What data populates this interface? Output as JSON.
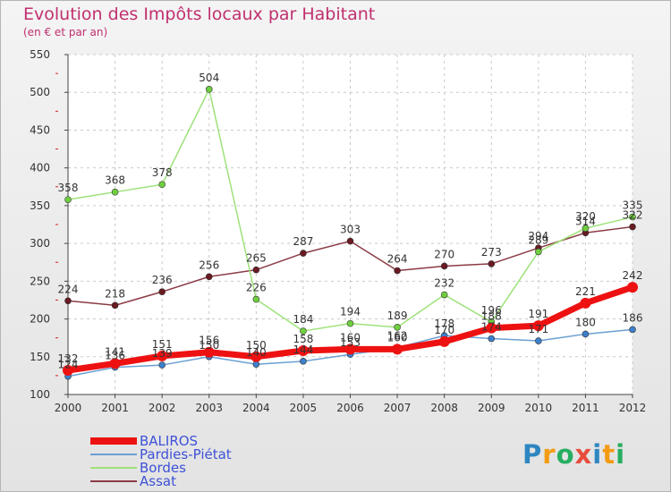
{
  "title": "Evolution des Impôts locaux par Habitant",
  "subtitle": "(en € et par an)",
  "logo": {
    "letters": [
      "P",
      "r",
      "o",
      "x",
      "i",
      "t",
      "i"
    ],
    "colors": [
      "#2e86c1",
      "#f39c12",
      "#27ae60",
      "#e74c3c",
      "#2e86c1",
      "#f39c12",
      "#27ae60"
    ]
  },
  "chart_data": {
    "type": "line",
    "title": "Evolution des Impôts locaux par Habitant",
    "subtitle": "(en € et par an)",
    "categories": [
      "2000",
      "2001",
      "2002",
      "2003",
      "2004",
      "2005",
      "2006",
      "2007",
      "2008",
      "2009",
      "2010",
      "2011",
      "2012"
    ],
    "ylim": [
      100,
      550
    ],
    "yticks": [
      "100",
      "150",
      "200",
      "250",
      "300",
      "350",
      "400",
      "450",
      "500",
      "550"
    ],
    "legend_position": "bottom-left",
    "series": [
      {
        "name": "BALIROS",
        "color": "#ee1111",
        "marker": "#ee1111",
        "values": [
          132,
          141,
          151,
          156,
          150,
          158,
          160,
          160,
          170,
          188,
          191,
          221,
          242
        ],
        "labels": [
          "132",
          "141",
          "151",
          "156",
          "150",
          "158",
          "160",
          "160",
          "170",
          "188",
          "191",
          "221",
          "242"
        ]
      },
      {
        "name": "Pardies-Piétat",
        "color": "#6b9fd3",
        "marker": "#3d7fc9",
        "values": [
          124,
          136,
          139,
          150,
          140,
          144,
          153,
          162,
          178,
          174,
          171,
          180,
          186
        ],
        "labels": [
          "124",
          "136",
          "139",
          "150",
          "140",
          "144",
          "153",
          "162",
          "178",
          "174",
          "171",
          "180",
          "186"
        ]
      },
      {
        "name": "Bordes",
        "color": "#9ee27a",
        "marker": "#6fcf3f",
        "values": [
          358,
          368,
          378,
          504,
          226,
          184,
          194,
          189,
          232,
          196,
          289,
          320,
          335
        ],
        "labels": [
          "358",
          "368",
          "378",
          "504",
          "226",
          "184",
          "194",
          "189",
          "232",
          "196",
          "289",
          "320",
          "335"
        ]
      },
      {
        "name": "Assat",
        "color": "#8b3a44",
        "marker": "#6a1a22",
        "values": [
          224,
          218,
          236,
          256,
          265,
          287,
          303,
          264,
          270,
          273,
          294,
          314,
          322
        ],
        "labels": [
          "224",
          "218",
          "236",
          "256",
          "265",
          "287",
          "303",
          "264",
          "270",
          "273",
          "294",
          "314",
          "322"
        ]
      }
    ]
  }
}
